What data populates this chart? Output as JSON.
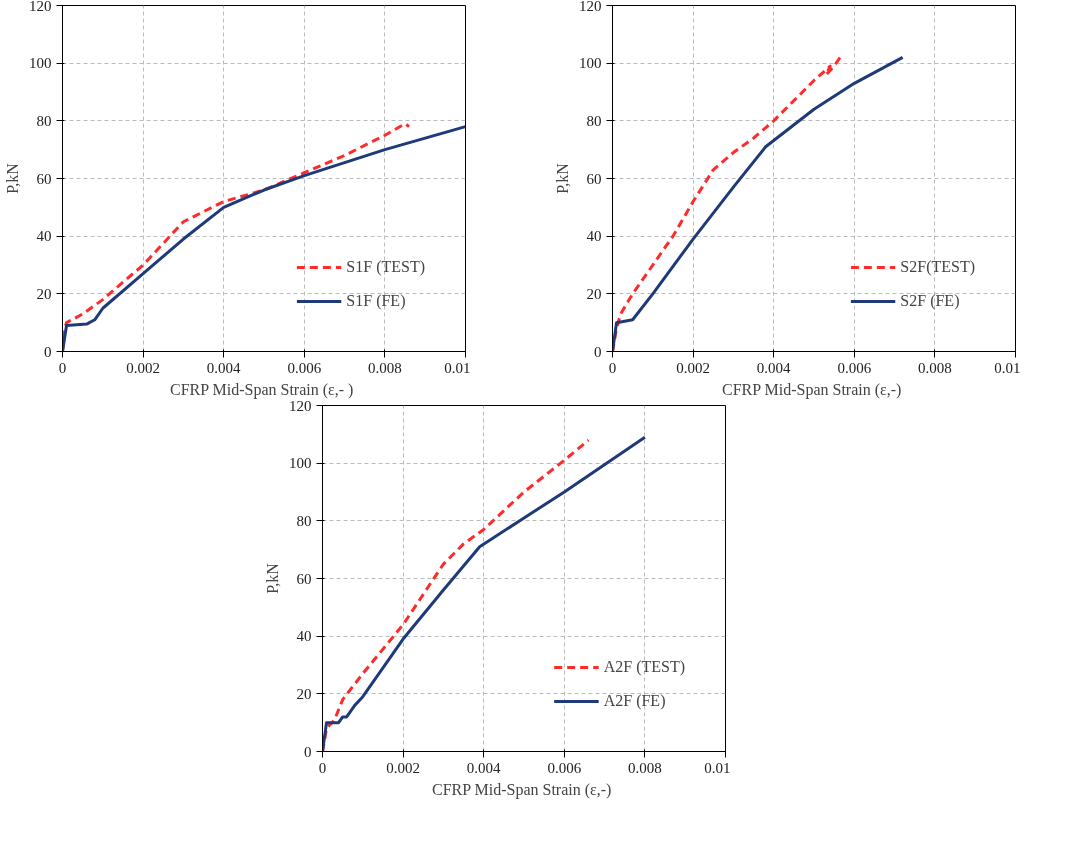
{
  "chart_data": [
    {
      "type": "line",
      "xlabel": "CFRP Mid-Span Strain  (ε,- )",
      "ylabel": "P,kN",
      "xlim": [
        0,
        0.01
      ],
      "ylim": [
        0,
        120
      ],
      "xticks": [
        0,
        0.002,
        0.004,
        0.006,
        0.008,
        0.01
      ],
      "yticks": [
        0,
        20,
        40,
        60,
        80,
        100,
        120
      ],
      "grid": true,
      "legend": "bottom right",
      "series": [
        {
          "name": "S1F (TEST)",
          "color": "#ff2a2a",
          "line_style": "dashed",
          "x": [
            0,
            5e-05,
            0.0001,
            0.0005,
            0.001,
            0.002,
            0.003,
            0.004,
            0.005,
            0.006,
            0.007,
            0.008,
            0.0085,
            0.0086
          ],
          "values": [
            0,
            8,
            10,
            13,
            18,
            30,
            45,
            52,
            56,
            62,
            68,
            75,
            79,
            78
          ]
        },
        {
          "name": "S1F (FE)",
          "color": "#1f3a7a",
          "line_style": "solid",
          "x": [
            0,
            0.0001,
            0.0006,
            0.0008,
            0.001,
            0.002,
            0.003,
            0.004,
            0.005,
            0.006,
            0.008,
            0.01
          ],
          "values": [
            0,
            9,
            9.5,
            11,
            15,
            27,
            39,
            50,
            56,
            61,
            70,
            78
          ]
        }
      ]
    },
    {
      "type": "line",
      "xlabel": "CFRP Mid-Span Strain  (ε,-)",
      "ylabel": "P,kN",
      "xlim": [
        0,
        0.01
      ],
      "ylim": [
        0,
        120
      ],
      "xticks": [
        0,
        0.002,
        0.004,
        0.006,
        0.008,
        0.01
      ],
      "yticks": [
        0,
        20,
        40,
        60,
        80,
        100,
        120
      ],
      "grid": true,
      "legend": "bottom right",
      "series": [
        {
          "name": "S2F(TEST)",
          "color": "#ff2a2a",
          "line_style": "dashed",
          "x": [
            0,
            0.0001,
            0.0002,
            0.0005,
            0.001,
            0.0015,
            0.002,
            0.0025,
            0.003,
            0.0035,
            0.004,
            0.0045,
            0.005,
            0.0054,
            0.0053,
            0.0055,
            0.0057
          ],
          "values": [
            0,
            8,
            13,
            20,
            30,
            40,
            52,
            63,
            69,
            74,
            80,
            87,
            94,
            99,
            96,
            99,
            103
          ]
        },
        {
          "name": "S2F (FE)",
          "color": "#1f3a7a",
          "line_style": "solid",
          "x": [
            0,
            0.0001,
            0.0005,
            0.001,
            0.002,
            0.003,
            0.0038,
            0.005,
            0.006,
            0.0072
          ],
          "values": [
            0,
            10,
            11,
            20,
            39,
            57,
            71,
            84,
            93,
            102
          ]
        }
      ]
    },
    {
      "type": "line",
      "xlabel": "CFRP Mid-Span Strain  (ε,-)",
      "ylabel": "P,kN",
      "xlim": [
        0,
        0.01
      ],
      "ylim": [
        0,
        120
      ],
      "xticks": [
        0,
        0.002,
        0.004,
        0.006,
        0.008,
        0.01
      ],
      "yticks": [
        0,
        20,
        40,
        60,
        80,
        100,
        120
      ],
      "grid": true,
      "legend": "bottom right",
      "series": [
        {
          "name": "A2F (TEST)",
          "color": "#ff2a2a",
          "line_style": "dashed",
          "x": [
            0,
            0.0001,
            0.0003,
            0.0005,
            0.001,
            0.002,
            0.003,
            0.0035,
            0.004,
            0.005,
            0.006,
            0.0066
          ],
          "values": [
            0,
            8,
            11,
            18,
            27,
            44,
            65,
            72,
            77,
            90,
            101,
            108
          ]
        },
        {
          "name": "A2F (FE)",
          "color": "#1f3a7a",
          "line_style": "solid",
          "x": [
            0,
            0.0001,
            0.0004,
            0.0005,
            0.0006,
            0.0008,
            0.001,
            0.002,
            0.003,
            0.0039,
            0.005,
            0.006,
            0.008
          ],
          "values": [
            0,
            10,
            10,
            12,
            12,
            16,
            19,
            39,
            56,
            71,
            81,
            90,
            109
          ]
        }
      ]
    }
  ]
}
